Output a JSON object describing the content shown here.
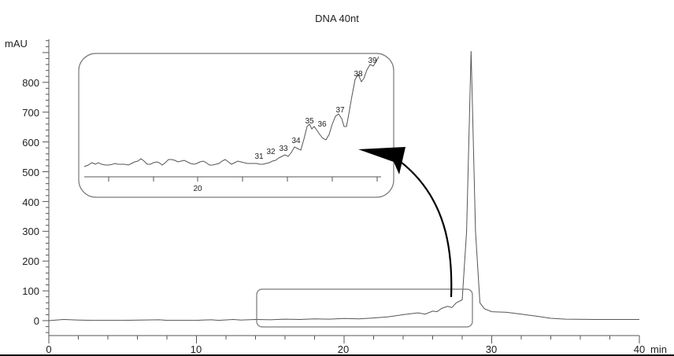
{
  "chart_data": {
    "type": "line",
    "title": "DNA 40nt",
    "xlabel": "min",
    "ylabel": "mAU",
    "xlim": [
      0,
      40
    ],
    "ylim": [
      -50,
      950
    ],
    "x_ticks": [
      0,
      10,
      20,
      30,
      40
    ],
    "y_ticks": [
      0,
      100,
      200,
      300,
      400,
      500,
      600,
      700,
      800
    ],
    "grid": false,
    "series": [
      {
        "name": "DNA 40nt chromatogram",
        "x": [
          0.5,
          1.0,
          1.5,
          2.0,
          3.0,
          5.0,
          7.5,
          8.0,
          10.0,
          11.0,
          11.5,
          12.5,
          13.0,
          14.0,
          15.0,
          16.0,
          17.0,
          18.0,
          19.0,
          20.0,
          21.0,
          22.0,
          23.0,
          24.0,
          25.0,
          25.5,
          26.0,
          26.3,
          26.6,
          27.0,
          27.3,
          27.6,
          28.0,
          28.3,
          28.6,
          28.9,
          29.2,
          29.5,
          30.0,
          31.0,
          32.0,
          33.0,
          34.0,
          35.0,
          37.0,
          40.0
        ],
        "y": [
          2,
          4,
          3,
          2,
          1,
          1,
          3,
          1,
          1,
          3,
          1,
          4,
          2,
          4,
          3,
          5,
          4,
          6,
          5,
          7,
          6,
          9,
          13,
          20,
          26,
          22,
          32,
          30,
          41,
          48,
          44,
          60,
          70,
          300,
          905,
          300,
          60,
          40,
          30,
          28,
          22,
          15,
          8,
          5,
          4,
          4
        ]
      }
    ],
    "inset": {
      "description": "Zoomed view of region ~14.5–28.5 min showing n-1 failure sequences",
      "x_tick_label": "20",
      "peak_labels": [
        "31",
        "32",
        "33",
        "34",
        "35",
        "36",
        "37",
        "38",
        "39"
      ]
    },
    "annotations": [
      "Rounded rectangle highlighting 14.5–28.5 min, 0–100 mAU region",
      "Curved arrow from highlighted region to magnified inset"
    ]
  },
  "labels": {
    "title": "DNA 40nt",
    "y_unit": "mAU",
    "x_unit": "min",
    "x_ticks": [
      "0",
      "10",
      "20",
      "30",
      "40"
    ],
    "y_ticks": [
      "0",
      "100",
      "200",
      "300",
      "400",
      "500",
      "600",
      "700",
      "800"
    ],
    "inset_x_tick": "20",
    "peaks": [
      "31",
      "32",
      "33",
      "34",
      "35",
      "36",
      "37",
      "38",
      "39"
    ]
  },
  "colors": {
    "trace": "#555555",
    "axis": "#555555",
    "box": "#777777",
    "arrow": "#000000"
  }
}
